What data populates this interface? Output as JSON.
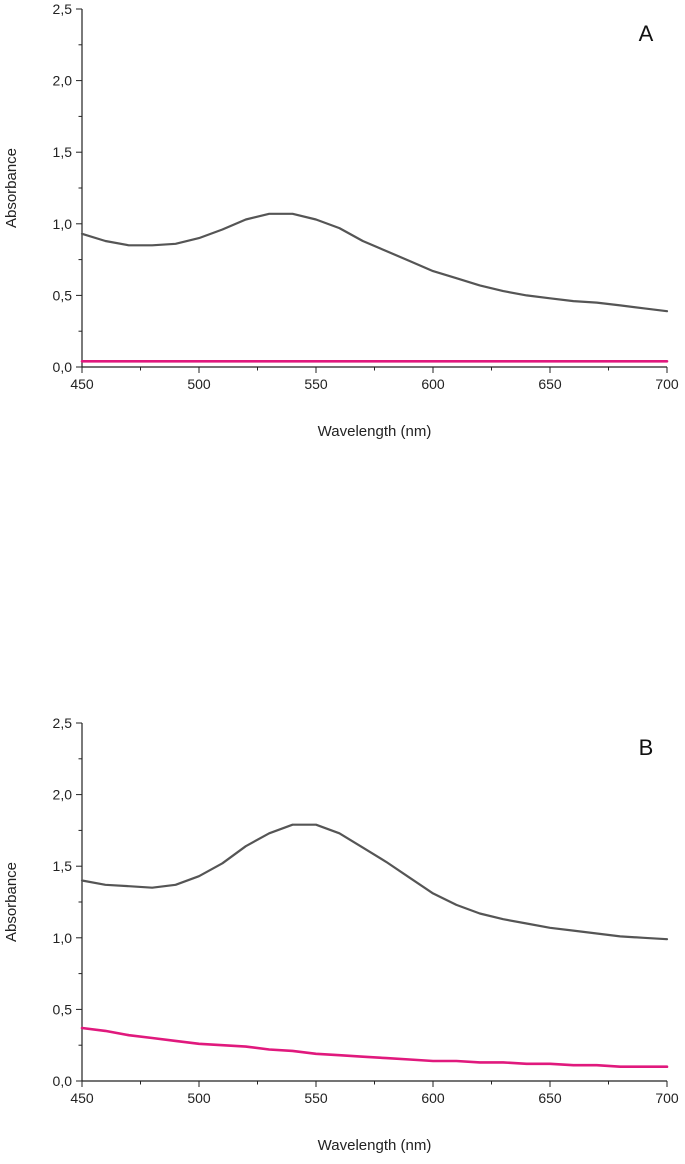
{
  "chart_data": [
    {
      "type": "line",
      "panel_label": "A",
      "xlabel": "Wavelength (nm)",
      "ylabel": "Absorbance",
      "xlim": [
        450,
        700
      ],
      "ylim": [
        0,
        2.5
      ],
      "x_ticks": [
        "450",
        "500",
        "550",
        "600",
        "650",
        "700"
      ],
      "y_ticks": [
        "0,0",
        "0,5",
        "1,0",
        "1,5",
        "2,0",
        "2,5"
      ],
      "grid": false,
      "legend": "none",
      "series": [
        {
          "color": "#555555",
          "x": [
            450,
            460,
            470,
            480,
            490,
            500,
            510,
            520,
            530,
            540,
            550,
            560,
            570,
            580,
            590,
            600,
            610,
            620,
            630,
            640,
            650,
            660,
            670,
            680,
            690,
            700
          ],
          "y": [
            0.93,
            0.88,
            0.85,
            0.85,
            0.86,
            0.9,
            0.96,
            1.03,
            1.07,
            1.07,
            1.03,
            0.97,
            0.88,
            0.81,
            0.74,
            0.67,
            0.62,
            0.57,
            0.53,
            0.5,
            0.48,
            0.46,
            0.45,
            0.43,
            0.41,
            0.39
          ]
        },
        {
          "color": "#e0197d",
          "x": [
            450,
            500,
            550,
            600,
            650,
            700
          ],
          "y": [
            0.04,
            0.04,
            0.04,
            0.04,
            0.04,
            0.04
          ]
        }
      ]
    },
    {
      "type": "line",
      "panel_label": "B",
      "xlabel": "Wavelength (nm)",
      "ylabel": "Absorbance",
      "xlim": [
        450,
        700
      ],
      "ylim": [
        0,
        2.5
      ],
      "x_ticks": [
        "450",
        "500",
        "550",
        "600",
        "650",
        "700"
      ],
      "y_ticks": [
        "0,0",
        "0,5",
        "1,0",
        "1,5",
        "2,0",
        "2,5"
      ],
      "grid": false,
      "legend": "none",
      "series": [
        {
          "color": "#555555",
          "x": [
            450,
            460,
            470,
            480,
            490,
            500,
            510,
            520,
            530,
            540,
            550,
            560,
            570,
            580,
            590,
            600,
            610,
            620,
            630,
            640,
            650,
            660,
            670,
            680,
            690,
            700
          ],
          "y": [
            1.4,
            1.37,
            1.36,
            1.35,
            1.37,
            1.43,
            1.52,
            1.64,
            1.73,
            1.79,
            1.79,
            1.73,
            1.63,
            1.53,
            1.42,
            1.31,
            1.23,
            1.17,
            1.13,
            1.1,
            1.07,
            1.05,
            1.03,
            1.01,
            1.0,
            0.99
          ]
        },
        {
          "color": "#e0197d",
          "x": [
            450,
            460,
            470,
            480,
            490,
            500,
            510,
            520,
            530,
            540,
            550,
            560,
            570,
            580,
            590,
            600,
            610,
            620,
            630,
            640,
            650,
            660,
            670,
            680,
            690,
            700
          ],
          "y": [
            0.37,
            0.35,
            0.32,
            0.3,
            0.28,
            0.26,
            0.25,
            0.24,
            0.22,
            0.21,
            0.19,
            0.18,
            0.17,
            0.16,
            0.15,
            0.14,
            0.14,
            0.13,
            0.13,
            0.12,
            0.12,
            0.11,
            0.11,
            0.1,
            0.1,
            0.1
          ]
        }
      ]
    }
  ]
}
